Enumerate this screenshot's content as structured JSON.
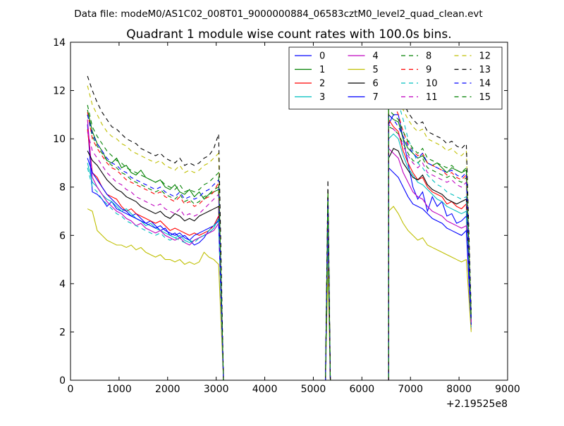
{
  "chart_data": {
    "type": "line",
    "suptitle": "Data file: modeM0/AS1C02_008T01_9000000884_06583cztM0_level2_quad_clean.evt",
    "title": "Quadrant 1 module wise count rates with 100.0s bins.",
    "xlabel": "",
    "ylabel": "",
    "x_offset_label": "+2.19525e8",
    "xlim": [
      0,
      9000
    ],
    "ylim": [
      0,
      14
    ],
    "xticks": [
      0,
      1000,
      2000,
      3000,
      4000,
      5000,
      6000,
      7000,
      8000,
      9000
    ],
    "yticks": [
      0,
      2,
      4,
      6,
      8,
      10,
      12,
      14
    ],
    "legend_position": "top-right",
    "legend_columns": 4,
    "segments": [
      {
        "x": [
          350,
          3150
        ],
        "step": 100
      },
      {
        "x": [
          3150,
          5250
        ],
        "step": 100
      },
      {
        "x": [
          5250,
          5550
        ],
        "step": 50
      },
      {
        "x": [
          5550,
          6550
        ],
        "step": 100
      },
      {
        "x": [
          6550,
          8250
        ],
        "step": 100
      }
    ],
    "series": [
      {
        "name": "0",
        "color": "#0000ff",
        "style": "solid",
        "seg1": [
          10.6,
          7.8,
          7.7,
          7.5,
          7.2,
          7.4,
          7.1,
          7.0,
          6.9,
          6.8,
          6.9,
          6.7,
          6.5,
          6.6,
          6.4,
          6.2,
          6.3,
          6.0,
          6.1,
          5.9,
          6.0,
          5.8,
          5.6,
          5.7,
          5.9,
          6.2,
          6.4,
          6.8,
          0.0
        ],
        "peak": [
          0.0,
          7.2,
          0.0
        ],
        "seg2": [
          10.6,
          11.0,
          11.0,
          10.0,
          9.0,
          8.0,
          7.5,
          7.8,
          7.0,
          7.6,
          7.2,
          7.4,
          6.8,
          6.9,
          6.5,
          6.6,
          6.8,
          2.5
        ]
      },
      {
        "name": "1",
        "color": "#008000",
        "style": "solid",
        "seg1": [
          11.2,
          10.3,
          9.8,
          9.5,
          9.1,
          9.0,
          9.2,
          8.8,
          8.9,
          8.6,
          8.5,
          8.7,
          8.4,
          8.3,
          8.2,
          8.3,
          8.0,
          7.9,
          8.1,
          7.8,
          7.7,
          7.9,
          7.6,
          7.8,
          7.5,
          7.7,
          7.8,
          7.9,
          0.0
        ],
        "peak": [
          0.0,
          7.6,
          0.0
        ],
        "seg2": [
          11.0,
          10.8,
          10.7,
          10.0,
          9.6,
          9.4,
          9.2,
          9.3,
          9.0,
          8.9,
          9.0,
          8.8,
          8.6,
          8.8,
          8.7,
          8.6,
          8.7,
          2.3
        ]
      },
      {
        "name": "2",
        "color": "#ff0000",
        "style": "solid",
        "seg1": [
          10.4,
          8.6,
          8.4,
          8.0,
          7.7,
          7.6,
          7.5,
          7.2,
          7.0,
          7.1,
          6.9,
          6.8,
          6.7,
          6.6,
          6.5,
          6.6,
          6.4,
          6.2,
          6.3,
          6.2,
          6.1,
          6.0,
          6.1,
          6.0,
          6.1,
          6.2,
          6.4,
          6.8,
          0.0
        ],
        "peak": [
          0.0,
          6.8,
          0.0
        ],
        "seg2": [
          10.8,
          10.5,
          10.3,
          9.5,
          9.0,
          8.6,
          8.3,
          8.4,
          8.0,
          7.8,
          7.7,
          7.6,
          7.3,
          7.4,
          7.2,
          7.1,
          7.3,
          2.4
        ]
      },
      {
        "name": "3",
        "color": "#00bfbf",
        "style": "solid",
        "seg1": [
          9.0,
          8.2,
          8.0,
          7.7,
          7.5,
          7.4,
          7.2,
          7.0,
          7.1,
          6.9,
          6.7,
          6.6,
          6.4,
          6.5,
          6.3,
          6.2,
          6.1,
          6.0,
          5.9,
          6.0,
          5.8,
          5.7,
          5.8,
          5.9,
          6.0,
          6.1,
          6.3,
          6.7,
          0.0
        ],
        "peak": [
          0.0,
          6.6,
          0.0
        ],
        "seg2": [
          10.0,
          10.2,
          10.0,
          9.3,
          8.8,
          8.5,
          8.2,
          8.1,
          7.9,
          7.7,
          7.5,
          7.4,
          7.2,
          7.1,
          7.0,
          6.9,
          7.0,
          2.2
        ]
      },
      {
        "name": "4",
        "color": "#bf00bf",
        "style": "solid",
        "seg1": [
          10.8,
          8.4,
          8.0,
          7.7,
          7.4,
          7.2,
          7.0,
          6.9,
          6.7,
          6.6,
          6.4,
          6.5,
          6.3,
          6.2,
          6.1,
          6.2,
          6.0,
          5.9,
          5.8,
          5.9,
          5.7,
          5.6,
          5.8,
          5.9,
          6.0,
          6.1,
          6.2,
          6.5,
          0.0
        ],
        "peak": [
          0.0,
          6.4,
          0.0
        ],
        "seg2": [
          9.6,
          9.4,
          9.2,
          8.6,
          8.2,
          7.8,
          7.6,
          7.5,
          7.2,
          7.0,
          6.9,
          6.8,
          6.6,
          6.5,
          6.4,
          6.3,
          6.4,
          2.1
        ]
      },
      {
        "name": "5",
        "color": "#bfbf00",
        "style": "solid",
        "seg1": [
          7.1,
          7.0,
          6.2,
          6.0,
          5.8,
          5.7,
          5.6,
          5.6,
          5.5,
          5.6,
          5.4,
          5.5,
          5.3,
          5.2,
          5.1,
          5.2,
          5.0,
          5.0,
          4.9,
          5.0,
          4.8,
          4.9,
          4.8,
          4.9,
          5.3,
          5.1,
          5.0,
          4.8,
          0.0
        ],
        "peak": [
          0.0,
          4.7,
          0.0
        ],
        "seg2": [
          7.0,
          7.2,
          6.9,
          6.5,
          6.2,
          6.0,
          5.8,
          5.9,
          5.6,
          5.5,
          5.4,
          5.3,
          5.2,
          5.1,
          5.0,
          4.9,
          5.0,
          2.0
        ]
      },
      {
        "name": "6",
        "color": "#000000",
        "style": "solid",
        "seg1": [
          9.5,
          9.1,
          8.9,
          8.6,
          8.3,
          8.1,
          7.9,
          7.8,
          7.6,
          7.5,
          7.4,
          7.2,
          7.1,
          7.0,
          6.9,
          7.0,
          6.8,
          6.7,
          6.9,
          6.8,
          6.6,
          6.7,
          6.6,
          6.8,
          6.9,
          7.0,
          7.1,
          7.2,
          0.0
        ],
        "peak": [
          0.0,
          7.4,
          0.0
        ],
        "seg2": [
          9.2,
          9.6,
          9.5,
          9.0,
          8.7,
          8.4,
          8.3,
          8.5,
          8.1,
          7.9,
          7.8,
          7.7,
          7.5,
          7.4,
          7.3,
          7.4,
          7.5,
          2.6
        ]
      },
      {
        "name": "7",
        "color": "#0000ff",
        "style": "solid",
        "seg1": [
          9.2,
          8.6,
          8.3,
          8.0,
          7.7,
          7.5,
          7.3,
          7.1,
          7.0,
          6.8,
          6.7,
          6.6,
          6.5,
          6.4,
          6.3,
          6.4,
          6.2,
          6.1,
          6.0,
          6.1,
          5.9,
          5.8,
          6.0,
          6.1,
          6.2,
          6.3,
          6.4,
          6.6,
          0.0
        ],
        "peak": [
          0.0,
          6.9,
          0.0
        ],
        "seg2": [
          8.8,
          8.6,
          8.4,
          8.0,
          7.6,
          7.3,
          7.2,
          7.1,
          6.9,
          6.7,
          6.6,
          6.5,
          6.3,
          6.2,
          6.1,
          6.0,
          6.2,
          2.3
        ]
      },
      {
        "name": "8",
        "color": "#008000",
        "style": "dashed",
        "seg1": [
          11.0,
          10.1,
          9.7,
          9.4,
          9.1,
          8.9,
          8.8,
          8.6,
          8.5,
          8.3,
          8.2,
          8.1,
          8.0,
          7.9,
          7.8,
          7.9,
          7.7,
          7.6,
          7.5,
          7.7,
          7.4,
          7.5,
          7.3,
          7.4,
          7.6,
          7.7,
          7.9,
          8.0,
          0.0
        ],
        "peak": [
          0.0,
          7.7,
          0.0
        ],
        "seg2": [
          10.5,
          10.4,
          10.2,
          9.8,
          9.4,
          9.1,
          9.0,
          9.2,
          8.8,
          8.7,
          8.6,
          8.5,
          8.4,
          8.5,
          8.3,
          8.2,
          8.4,
          2.5
        ]
      },
      {
        "name": "9",
        "color": "#ff0000",
        "style": "dashed",
        "seg1": [
          11.1,
          10.0,
          9.6,
          9.3,
          9.0,
          8.8,
          8.7,
          8.5,
          8.3,
          8.2,
          8.1,
          8.0,
          7.9,
          7.8,
          7.7,
          7.8,
          7.6,
          7.5,
          7.4,
          7.6,
          7.3,
          7.4,
          7.2,
          7.3,
          7.5,
          7.6,
          7.8,
          8.2,
          0.0
        ],
        "peak": [
          0.0,
          7.8,
          0.0
        ],
        "seg2": [
          12.0,
          11.5,
          11.0,
          10.3,
          9.8,
          9.5,
          9.3,
          9.4,
          9.0,
          8.9,
          8.8,
          8.7,
          8.5,
          8.6,
          8.4,
          8.3,
          8.5,
          2.6
        ]
      },
      {
        "name": "10",
        "color": "#00bfbf",
        "style": "dashed",
        "seg1": [
          8.8,
          8.0,
          7.8,
          7.5,
          7.3,
          7.1,
          6.9,
          6.8,
          6.6,
          6.5,
          6.4,
          6.3,
          6.2,
          6.1,
          6.0,
          6.1,
          5.9,
          5.8,
          5.9,
          5.8,
          5.7,
          5.8,
          5.7,
          5.9,
          6.0,
          6.2,
          6.4,
          6.6,
          0.0
        ],
        "peak": [
          0.0,
          6.3,
          0.0
        ],
        "seg2": [
          12.3,
          12.5,
          11.5,
          10.8,
          10.0,
          9.5,
          9.0,
          8.8,
          8.5,
          8.3,
          8.1,
          8.0,
          7.8,
          7.7,
          7.6,
          7.5,
          7.6,
          2.2
        ]
      },
      {
        "name": "11",
        "color": "#bf00bf",
        "style": "dashed",
        "seg1": [
          10.3,
          9.5,
          9.2,
          8.9,
          8.6,
          8.4,
          8.2,
          8.1,
          7.9,
          7.8,
          7.6,
          7.5,
          7.4,
          7.3,
          7.2,
          7.3,
          7.1,
          7.0,
          6.9,
          7.1,
          6.8,
          6.9,
          6.8,
          6.9,
          7.1,
          7.3,
          7.5,
          7.7,
          0.0
        ],
        "peak": [
          0.0,
          7.1,
          0.0
        ],
        "seg2": [
          10.6,
          10.4,
          10.2,
          9.7,
          9.3,
          9.0,
          8.8,
          9.0,
          8.6,
          8.5,
          8.4,
          8.3,
          8.2,
          8.3,
          8.1,
          8.0,
          8.2,
          2.4
        ]
      },
      {
        "name": "12",
        "color": "#bfbf00",
        "style": "dashed",
        "seg1": [
          12.2,
          11.4,
          11.0,
          10.6,
          10.3,
          10.1,
          10.0,
          9.8,
          9.7,
          9.5,
          9.4,
          9.3,
          9.2,
          9.1,
          9.0,
          9.1,
          8.9,
          8.8,
          8.7,
          8.9,
          8.6,
          8.7,
          8.6,
          8.7,
          8.9,
          9.0,
          9.2,
          9.4,
          0.0
        ],
        "peak": [
          0.0,
          7.9,
          0.0
        ],
        "seg2": [
          12.0,
          12.2,
          11.8,
          11.2,
          10.8,
          10.5,
          10.3,
          10.4,
          10.0,
          9.9,
          9.8,
          9.7,
          9.5,
          9.6,
          9.4,
          9.3,
          9.5,
          2.8
        ]
      },
      {
        "name": "13",
        "color": "#000000",
        "style": "dashed",
        "seg1": [
          12.6,
          12.0,
          11.5,
          11.1,
          10.8,
          10.5,
          10.4,
          10.2,
          10.0,
          9.9,
          9.8,
          9.6,
          9.5,
          9.4,
          9.3,
          9.4,
          9.2,
          9.1,
          9.0,
          9.2,
          8.9,
          9.0,
          8.9,
          9.0,
          9.2,
          9.3,
          9.6,
          10.2,
          0.0
        ],
        "peak": [
          0.0,
          8.3,
          0.0
        ],
        "seg2": [
          12.4,
          12.2,
          11.9,
          11.5,
          11.1,
          10.8,
          10.6,
          10.7,
          10.3,
          10.2,
          10.1,
          10.0,
          9.8,
          9.9,
          9.7,
          9.6,
          9.8,
          2.9
        ]
      },
      {
        "name": "14",
        "color": "#0000ff",
        "style": "dashed",
        "seg1": [
          11.0,
          10.2,
          9.8,
          9.5,
          9.2,
          9.0,
          8.9,
          8.7,
          8.6,
          8.4,
          8.3,
          8.2,
          8.1,
          8.0,
          7.9,
          8.0,
          7.8,
          7.7,
          7.6,
          7.8,
          7.5,
          7.6,
          7.5,
          7.6,
          7.8,
          7.9,
          8.1,
          8.3,
          0.0
        ],
        "peak": [
          0.0,
          7.5,
          0.0
        ],
        "seg2": [
          11.0,
          10.8,
          10.5,
          10.1,
          9.7,
          9.4,
          9.2,
          9.4,
          9.0,
          8.9,
          8.8,
          8.7,
          8.6,
          8.7,
          8.5,
          8.4,
          8.6,
          2.5
        ]
      },
      {
        "name": "15",
        "color": "#008000",
        "style": "dashed",
        "seg1": [
          11.4,
          10.5,
          10.1,
          9.8,
          9.5,
          9.3,
          9.1,
          9.0,
          8.8,
          8.7,
          8.6,
          8.5,
          8.4,
          8.3,
          8.2,
          8.3,
          8.1,
          8.0,
          7.9,
          8.1,
          7.8,
          7.9,
          7.8,
          7.9,
          8.1,
          8.2,
          8.4,
          8.6,
          0.0
        ],
        "peak": [
          0.0,
          7.8,
          0.0
        ],
        "seg2": [
          11.2,
          11.0,
          10.8,
          10.3,
          9.9,
          9.6,
          9.4,
          9.6,
          9.2,
          9.1,
          9.0,
          8.9,
          8.8,
          8.9,
          8.7,
          8.6,
          8.8,
          2.6
        ]
      }
    ]
  }
}
